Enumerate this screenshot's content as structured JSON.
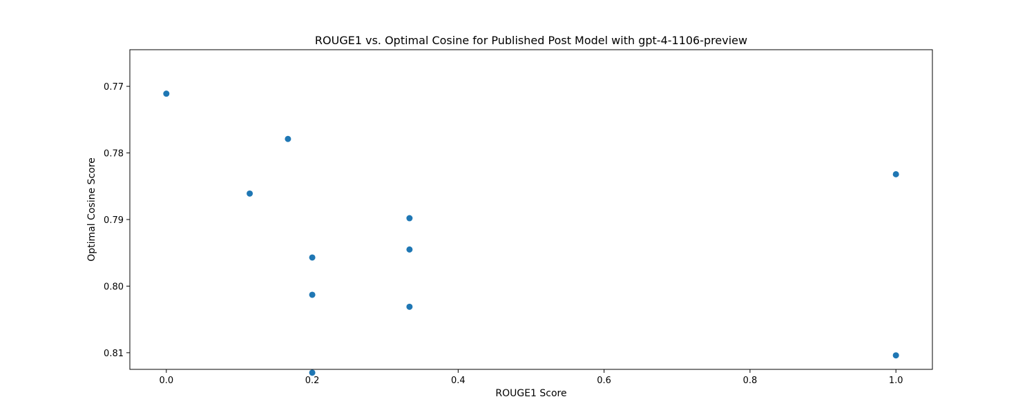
{
  "chart_data": {
    "type": "scatter",
    "title": "ROUGE1 vs. Optimal Cosine for Published Post Model with gpt-4-1106-preview",
    "xlabel": "ROUGE1 Score",
    "ylabel": "Optimal Cosine Score",
    "xlim": [
      -0.05,
      1.05
    ],
    "ylim": [
      0.7645,
      0.8125
    ],
    "y_inverted": true,
    "grid": false,
    "legend": "none",
    "x_ticks": [
      {
        "value": 0.0,
        "label": "0.0"
      },
      {
        "value": 0.2,
        "label": "0.2"
      },
      {
        "value": 0.4,
        "label": "0.4"
      },
      {
        "value": 0.6,
        "label": "0.6"
      },
      {
        "value": 0.8,
        "label": "0.8"
      },
      {
        "value": 1.0,
        "label": "1.0"
      }
    ],
    "y_ticks": [
      {
        "value": 0.77,
        "label": "0.77"
      },
      {
        "value": 0.78,
        "label": "0.78"
      },
      {
        "value": 0.79,
        "label": "0.79"
      },
      {
        "value": 0.8,
        "label": "0.80"
      },
      {
        "value": 0.81,
        "label": "0.81"
      }
    ],
    "series": [
      {
        "color": "#1f77b4",
        "points": [
          {
            "x": 0.0,
            "y": 0.7711
          },
          {
            "x": 0.1667,
            "y": 0.7779
          },
          {
            "x": 0.1143,
            "y": 0.7861
          },
          {
            "x": 0.3333,
            "y": 0.7898
          },
          {
            "x": 0.3333,
            "y": 0.7945
          },
          {
            "x": 0.2,
            "y": 0.7957
          },
          {
            "x": 0.2,
            "y": 0.8013
          },
          {
            "x": 0.3333,
            "y": 0.8031
          },
          {
            "x": 0.2,
            "y": 0.813
          },
          {
            "x": 1.0,
            "y": 0.7832
          },
          {
            "x": 1.0,
            "y": 0.8104
          }
        ]
      }
    ]
  }
}
